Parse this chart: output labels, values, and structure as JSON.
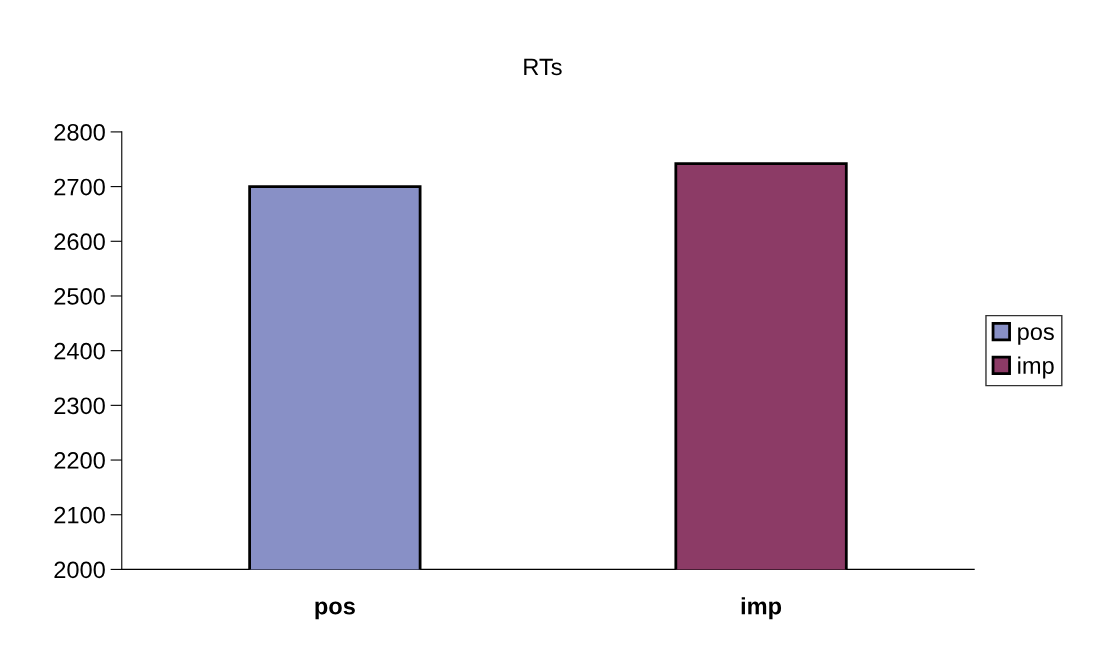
{
  "chart_data": {
    "type": "bar",
    "title": "RTs",
    "categories": [
      "pos",
      "imp"
    ],
    "series": [
      {
        "name": "pos",
        "color": "#8890c6",
        "values": [
          2700,
          null
        ]
      },
      {
        "name": "imp",
        "color": "#8c3b66",
        "values": [
          null,
          2742
        ]
      }
    ],
    "ylim": [
      2000,
      2800
    ],
    "yticks": [
      2000,
      2100,
      2200,
      2300,
      2400,
      2500,
      2600,
      2700,
      2800
    ],
    "grid": false,
    "legend": "right"
  }
}
